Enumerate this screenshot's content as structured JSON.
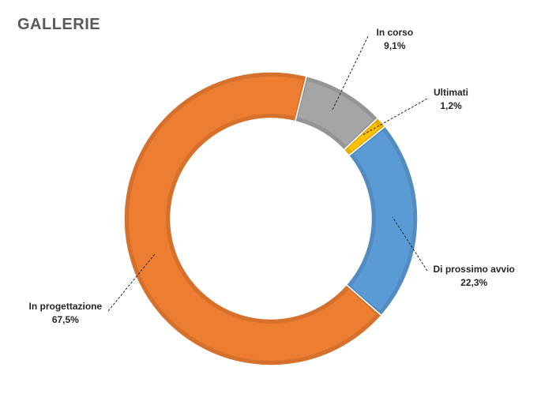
{
  "chart_data": {
    "type": "donut",
    "title": "GALLERIE",
    "legend": "none",
    "slices": [
      {
        "name": "In corso",
        "value": 9.1,
        "label": "9,1%",
        "color": "#A5A5A5"
      },
      {
        "name": "Ultimati",
        "value": 1.2,
        "label": "1,2%",
        "color": "#FFC000"
      },
      {
        "name": "Di prossimo avvio",
        "value": 22.3,
        "label": "22,3%",
        "color": "#5B9BD5"
      },
      {
        "name": "In progettazione",
        "value": 67.5,
        "label": "67,5%",
        "color": "#ED7D31"
      }
    ]
  }
}
